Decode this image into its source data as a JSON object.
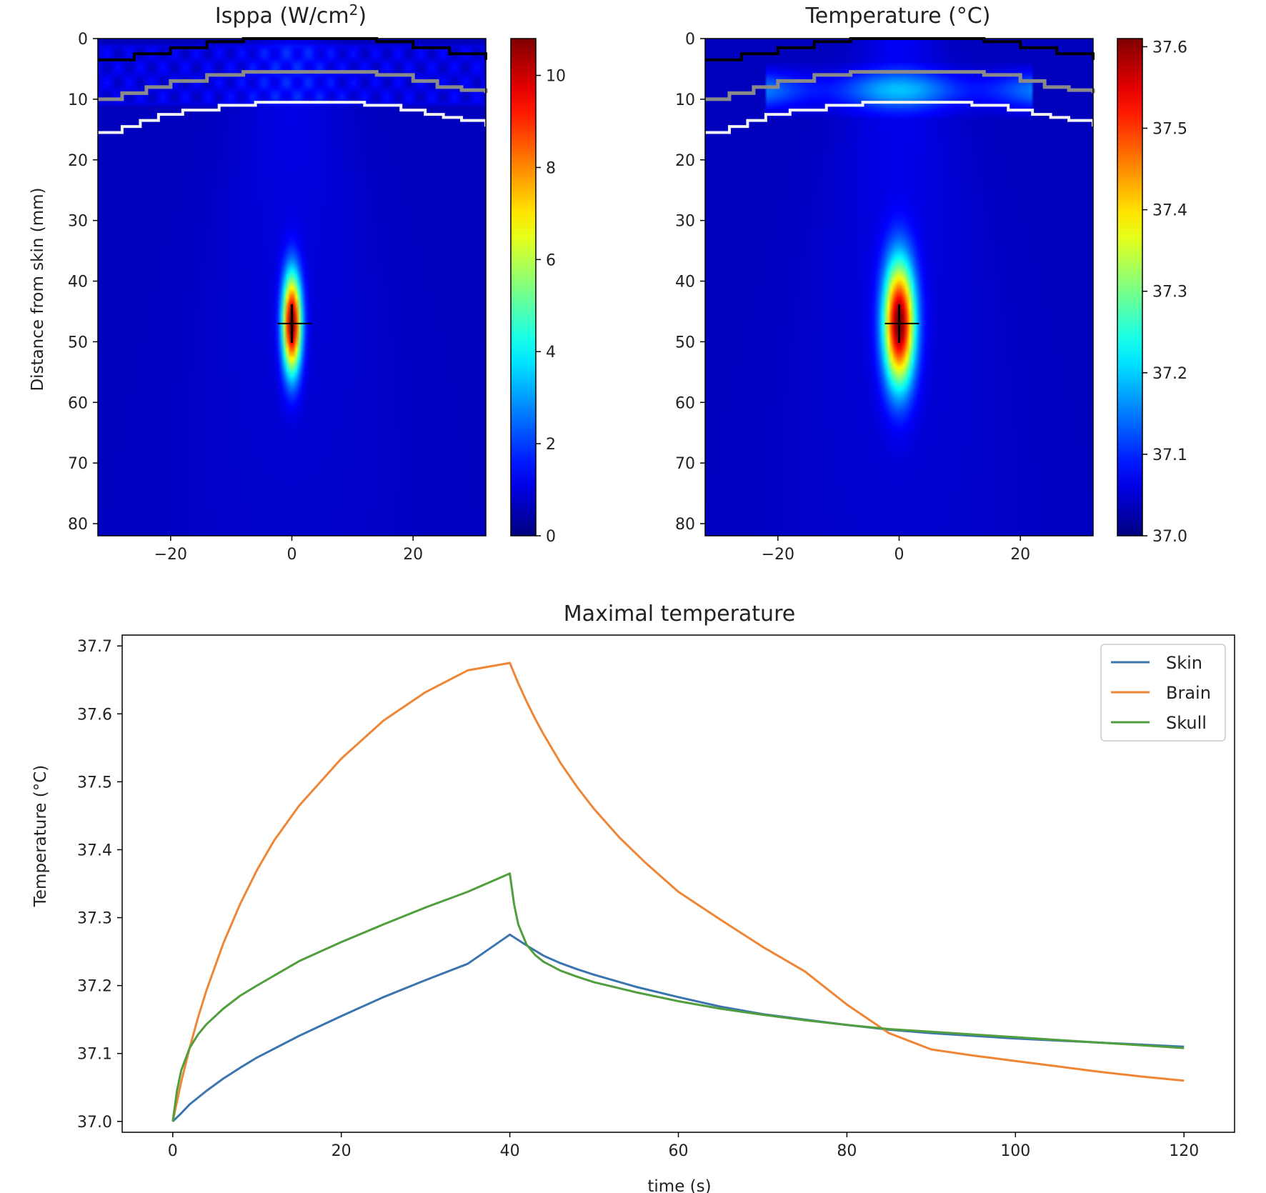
{
  "chart_data": [
    {
      "type": "heatmap",
      "title": "Isppa (W/cm²)",
      "title_base": "Isppa (W/cm",
      "title_sup": "2",
      "title_end": ")",
      "ylabel": "Distance from skin (mm)",
      "xlabel": "",
      "xlim": [
        -32,
        32
      ],
      "ylim": [
        82,
        0
      ],
      "x_ticks": [
        -20,
        0,
        20
      ],
      "y_ticks": [
        0,
        10,
        20,
        30,
        40,
        50,
        60,
        70,
        80
      ],
      "colormap": "jet",
      "colorbar": {
        "min": 0,
        "max": 10.8,
        "ticks": [
          0,
          2,
          4,
          6,
          8,
          10
        ]
      },
      "focus": {
        "x": 0,
        "y": 47,
        "peak": 10.8,
        "sigma_x_mm": 1.5,
        "sigma_y_mm": 8
      },
      "target_marker": {
        "x": 0,
        "y": 47
      },
      "boundaries": [
        {
          "name": "skin",
          "color": "#000000",
          "points": [
            [
              -32,
              3.5
            ],
            [
              -26,
              2.5
            ],
            [
              -20,
              1.5
            ],
            [
              -14,
              0.5
            ],
            [
              -8,
              0
            ],
            [
              8,
              0
            ],
            [
              14,
              0.5
            ],
            [
              20,
              1.5
            ],
            [
              26,
              2.5
            ],
            [
              32,
              3.5
            ]
          ]
        },
        {
          "name": "outer-skull",
          "color": "#8a8a8a",
          "points": [
            [
              -32,
              10
            ],
            [
              -28,
              9
            ],
            [
              -24,
              8
            ],
            [
              -20,
              7
            ],
            [
              -14,
              6
            ],
            [
              -8,
              5.5
            ],
            [
              8,
              5.5
            ],
            [
              14,
              6
            ],
            [
              20,
              7
            ],
            [
              24,
              8
            ],
            [
              28,
              8.5
            ],
            [
              32,
              9
            ]
          ]
        },
        {
          "name": "inner-skull",
          "color": "#f2f2f2",
          "points": [
            [
              -32,
              15.5
            ],
            [
              -28,
              14.5
            ],
            [
              -25,
              13.5
            ],
            [
              -22,
              12.5
            ],
            [
              -18,
              11.8
            ],
            [
              -12,
              11
            ],
            [
              -6,
              10.5
            ],
            [
              6,
              10.5
            ],
            [
              12,
              11
            ],
            [
              18,
              11.8
            ],
            [
              22,
              12.5
            ],
            [
              25,
              13
            ],
            [
              28,
              13.5
            ],
            [
              32,
              14.5
            ]
          ]
        }
      ]
    },
    {
      "type": "heatmap",
      "title": "Temperature (°C)",
      "xlabel": "",
      "ylabel": "",
      "xlim": [
        -32,
        32
      ],
      "ylim": [
        82,
        0
      ],
      "x_ticks": [
        -20,
        0,
        20
      ],
      "y_ticks": [
        0,
        10,
        20,
        30,
        40,
        50,
        60,
        70,
        80
      ],
      "colormap": "jet",
      "colorbar": {
        "min": 37.0,
        "max": 37.61,
        "ticks": [
          "37.0",
          "37.1",
          "37.2",
          "37.3",
          "37.4",
          "37.5",
          "37.6"
        ]
      },
      "focus": {
        "x": 0,
        "y": 47,
        "peak": 37.61,
        "sigma_x_mm": 2.5,
        "sigma_y_mm": 10
      },
      "target_marker": {
        "x": 0,
        "y": 47
      },
      "boundaries": [
        {
          "name": "skin",
          "color": "#000000",
          "points": [
            [
              -32,
              3.5
            ],
            [
              -26,
              2.5
            ],
            [
              -20,
              1.5
            ],
            [
              -14,
              0.5
            ],
            [
              -8,
              0
            ],
            [
              8,
              0
            ],
            [
              14,
              0.5
            ],
            [
              20,
              1.5
            ],
            [
              26,
              2.5
            ],
            [
              32,
              3.5
            ]
          ]
        },
        {
          "name": "outer-skull",
          "color": "#8a8a8a",
          "points": [
            [
              -32,
              10
            ],
            [
              -28,
              9
            ],
            [
              -24,
              8
            ],
            [
              -20,
              7
            ],
            [
              -14,
              6
            ],
            [
              -8,
              5.5
            ],
            [
              8,
              5.5
            ],
            [
              14,
              6
            ],
            [
              20,
              7
            ],
            [
              24,
              8
            ],
            [
              28,
              8.5
            ],
            [
              32,
              9
            ]
          ]
        },
        {
          "name": "inner-skull",
          "color": "#f2f2f2",
          "points": [
            [
              -32,
              15.5
            ],
            [
              -28,
              14.5
            ],
            [
              -25,
              13.5
            ],
            [
              -22,
              12.5
            ],
            [
              -18,
              11.8
            ],
            [
              -12,
              11
            ],
            [
              -6,
              10.5
            ],
            [
              6,
              10.5
            ],
            [
              12,
              11
            ],
            [
              18,
              11.8
            ],
            [
              22,
              12.5
            ],
            [
              25,
              13
            ],
            [
              28,
              13.5
            ],
            [
              32,
              14.5
            ]
          ]
        }
      ]
    },
    {
      "type": "line",
      "title": "Maximal temperature",
      "xlabel": "time (s)",
      "ylabel": "Temperature (°C)",
      "xlim": [
        -6,
        126
      ],
      "ylim": [
        36.984,
        37.716
      ],
      "x_ticks": [
        0,
        20,
        40,
        60,
        80,
        100,
        120
      ],
      "y_ticks": [
        "37.0",
        "37.1",
        "37.2",
        "37.3",
        "37.4",
        "37.5",
        "37.6",
        "37.7"
      ],
      "legend_position": "top-right",
      "series": [
        {
          "name": "Skin",
          "color": "#3b75af",
          "x": [
            0,
            1,
            2,
            4,
            6,
            8,
            10,
            15,
            20,
            25,
            30,
            35,
            40,
            42,
            44,
            46,
            48,
            50,
            55,
            60,
            65,
            70,
            75,
            80,
            85,
            90,
            95,
            100,
            105,
            110,
            115,
            120
          ],
          "y": [
            37.0,
            37.012,
            37.025,
            37.045,
            37.063,
            37.079,
            37.094,
            37.126,
            37.155,
            37.183,
            37.208,
            37.232,
            37.275,
            37.259,
            37.244,
            37.233,
            37.224,
            37.216,
            37.198,
            37.183,
            37.169,
            37.158,
            37.15,
            37.142,
            37.135,
            37.13,
            37.126,
            37.122,
            37.119,
            37.116,
            37.113,
            37.11
          ]
        },
        {
          "name": "Brain",
          "color": "#ef8636",
          "x": [
            0,
            1,
            2,
            3,
            4,
            6,
            8,
            10,
            12,
            15,
            20,
            25,
            30,
            35,
            40,
            41,
            42,
            43,
            44,
            46,
            48,
            50,
            53,
            56,
            60,
            65,
            70,
            75,
            80,
            85,
            90,
            95,
            100,
            105,
            110,
            115,
            120
          ],
          "y": [
            37.0,
            37.058,
            37.108,
            37.153,
            37.193,
            37.262,
            37.32,
            37.37,
            37.413,
            37.465,
            37.534,
            37.59,
            37.632,
            37.664,
            37.675,
            37.645,
            37.618,
            37.593,
            37.57,
            37.528,
            37.492,
            37.46,
            37.418,
            37.382,
            37.338,
            37.297,
            37.257,
            37.221,
            37.172,
            37.13,
            37.106,
            37.097,
            37.089,
            37.081,
            37.073,
            37.066,
            37.06
          ]
        },
        {
          "name": "Skull",
          "color": "#519e3e",
          "x": [
            0,
            0.5,
            1,
            2,
            3,
            4,
            6,
            8,
            10,
            15,
            20,
            25,
            30,
            35,
            40,
            40.5,
            41,
            42,
            43,
            44,
            46,
            48,
            50,
            55,
            60,
            65,
            70,
            75,
            80,
            85,
            90,
            95,
            100,
            105,
            110,
            115,
            120
          ],
          "y": [
            37.0,
            37.045,
            37.075,
            37.108,
            37.128,
            37.143,
            37.166,
            37.185,
            37.2,
            37.236,
            37.264,
            37.29,
            37.315,
            37.338,
            37.365,
            37.32,
            37.29,
            37.26,
            37.245,
            37.235,
            37.222,
            37.213,
            37.205,
            37.19,
            37.177,
            37.166,
            37.157,
            37.149,
            37.142,
            37.136,
            37.132,
            37.128,
            37.124,
            37.12,
            37.116,
            37.112,
            37.108
          ]
        }
      ]
    }
  ]
}
